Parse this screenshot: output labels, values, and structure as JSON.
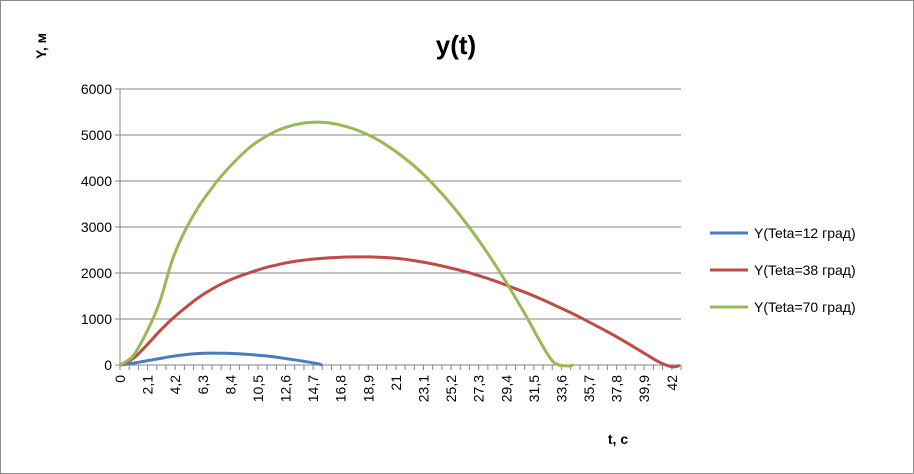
{
  "chart_data": {
    "type": "line",
    "title": "y(t)",
    "xlabel": "t, c",
    "ylabel": "Y, м",
    "xlim": [
      0,
      42.7
    ],
    "ylim": [
      0,
      6000
    ],
    "y_ticks": [
      0,
      1000,
      2000,
      3000,
      4000,
      5000,
      6000
    ],
    "x_tick_labels": [
      "0",
      "2,1",
      "4,2",
      "6,3",
      "8,4",
      "10,5",
      "12,6",
      "14,7",
      "16,8",
      "18,9",
      "21",
      "23,1",
      "25,2",
      "27,3",
      "29,4",
      "31,5",
      "33,6",
      "35,7",
      "37,8",
      "39,9",
      "42"
    ],
    "grid": "horizontal",
    "legend_position": "right",
    "series": [
      {
        "name": "Y(Teta=12 град)",
        "color": "#4a7ebb",
        "x": [
          0,
          1,
          2,
          3,
          4,
          5,
          6,
          7,
          8,
          9,
          10,
          11,
          12,
          13,
          14,
          15,
          15.4
        ],
        "y": [
          0,
          40,
          90,
          140,
          190,
          225,
          250,
          258,
          255,
          245,
          225,
          200,
          165,
          125,
          80,
          30,
          0
        ]
      },
      {
        "name": "Y(Teta=38 град)",
        "color": "#be4b48",
        "x": [
          0,
          1,
          2,
          3,
          4,
          5,
          6,
          7,
          8,
          9,
          10,
          11,
          12,
          13,
          14,
          15,
          16,
          17,
          18,
          19,
          20,
          21,
          22,
          23,
          24,
          25,
          26,
          27,
          28,
          29,
          30,
          31,
          32,
          33,
          34,
          35,
          36,
          37,
          38,
          39,
          40,
          41,
          42,
          42.6
        ],
        "y": [
          0,
          140,
          420,
          730,
          1010,
          1250,
          1470,
          1650,
          1800,
          1920,
          2020,
          2110,
          2180,
          2240,
          2280,
          2310,
          2330,
          2345,
          2350,
          2350,
          2340,
          2320,
          2285,
          2240,
          2185,
          2120,
          2050,
          1970,
          1880,
          1780,
          1670,
          1560,
          1440,
          1310,
          1180,
          1040,
          890,
          740,
          580,
          410,
          240,
          70,
          -40,
          -10
        ]
      },
      {
        "name": "Y(Teta=70 град)",
        "color": "#98b954",
        "x": [
          0,
          1,
          2,
          3,
          4,
          5,
          6,
          7,
          8,
          9,
          10,
          11,
          12,
          13,
          14,
          15,
          16,
          17,
          18,
          19,
          20,
          21,
          22,
          23,
          24,
          25,
          26,
          27,
          28,
          29,
          30,
          31,
          32,
          33,
          34,
          34.5
        ],
        "y": [
          0,
          200,
          700,
          1350,
          2300,
          2950,
          3450,
          3850,
          4200,
          4500,
          4760,
          4950,
          5100,
          5200,
          5260,
          5280,
          5260,
          5200,
          5110,
          4990,
          4830,
          4640,
          4420,
          4170,
          3880,
          3560,
          3210,
          2830,
          2420,
          1980,
          1510,
          1020,
          500,
          60,
          -20,
          0
        ]
      }
    ]
  }
}
